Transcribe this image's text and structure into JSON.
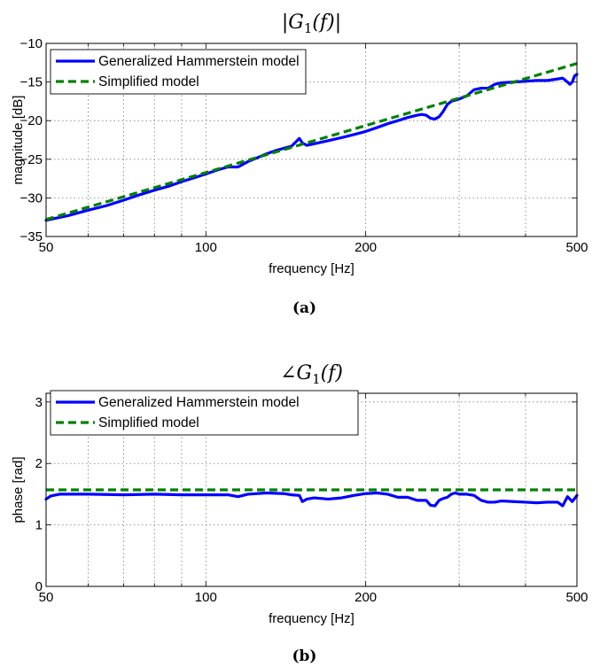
{
  "chart_data": [
    {
      "type": "line",
      "caption": "(a)",
      "title": "|G_1(f)|",
      "xlabel": "frequency [Hz]",
      "ylabel": "magnitude [dB]",
      "xscale": "log",
      "xlim": [
        50,
        500
      ],
      "ylim": [
        -35,
        -10
      ],
      "xticks": [
        50,
        100,
        200,
        500
      ],
      "yticks": [
        -35,
        -30,
        -25,
        -20,
        -15,
        -10
      ],
      "xtick_labels": [
        "50",
        "100",
        "200",
        "500"
      ],
      "ytick_labels": [
        "−35",
        "−30",
        "−25",
        "−20",
        "−15",
        "−10"
      ],
      "grid": true,
      "legend_position": "top-left",
      "series": [
        {
          "name": "Generalized Hammerstein model",
          "color": "#0000ff",
          "style": "solid",
          "x": [
            50,
            55,
            60,
            65,
            70,
            75,
            80,
            85,
            90,
            95,
            100,
            105,
            110,
            115,
            120,
            125,
            130,
            135,
            140,
            145,
            148,
            150,
            152,
            155,
            160,
            170,
            180,
            190,
            200,
            210,
            220,
            230,
            240,
            250,
            255,
            260,
            265,
            270,
            275,
            280,
            285,
            290,
            300,
            310,
            320,
            330,
            340,
            350,
            360,
            380,
            400,
            420,
            440,
            460,
            470,
            480,
            485,
            490,
            495,
            500
          ],
          "y": [
            -32.9,
            -32.3,
            -31.6,
            -31.0,
            -30.3,
            -29.6,
            -29.0,
            -28.5,
            -27.9,
            -27.4,
            -26.9,
            -26.4,
            -26.0,
            -26.0,
            -25.3,
            -24.8,
            -24.3,
            -23.9,
            -23.6,
            -23.3,
            -22.7,
            -22.3,
            -22.9,
            -23.2,
            -23.0,
            -22.6,
            -22.2,
            -21.8,
            -21.4,
            -20.9,
            -20.4,
            -20.0,
            -19.6,
            -19.3,
            -19.2,
            -19.3,
            -19.7,
            -19.8,
            -19.5,
            -18.8,
            -17.9,
            -17.5,
            -17.2,
            -16.8,
            -16.0,
            -15.8,
            -15.8,
            -15.3,
            -15.1,
            -15.0,
            -14.9,
            -14.8,
            -14.8,
            -14.6,
            -14.5,
            -15.0,
            -15.3,
            -15.0,
            -14.2,
            -14.0
          ]
        },
        {
          "name": "Simplified model",
          "color": "#008000",
          "style": "dashed",
          "x": [
            50,
            500
          ],
          "y": [
            -32.8,
            -12.6
          ]
        }
      ]
    },
    {
      "type": "line",
      "caption": "(b)",
      "title": "∠G_1(f)",
      "xlabel": "frequency [Hz]",
      "ylabel": "phase [rad]",
      "xscale": "log",
      "xlim": [
        50,
        500
      ],
      "ylim": [
        0,
        3.14159
      ],
      "xticks": [
        50,
        100,
        200,
        500
      ],
      "yticks": [
        0,
        1,
        2,
        3
      ],
      "xtick_labels": [
        "50",
        "100",
        "200",
        "500"
      ],
      "ytick_labels": [
        "0",
        "1",
        "2",
        "3"
      ],
      "grid": true,
      "legend_position": "top-left",
      "series": [
        {
          "name": "Generalized Hammerstein model",
          "color": "#0000ff",
          "style": "solid",
          "x": [
            50,
            51,
            53,
            60,
            70,
            80,
            90,
            100,
            105,
            110,
            115,
            120,
            130,
            140,
            145,
            150,
            152,
            155,
            160,
            170,
            180,
            190,
            200,
            210,
            220,
            230,
            240,
            250,
            260,
            265,
            270,
            275,
            280,
            285,
            290,
            295,
            300,
            310,
            320,
            330,
            340,
            350,
            360,
            380,
            400,
            420,
            440,
            450,
            460,
            470,
            480,
            490,
            500
          ],
          "y": [
            1.42,
            1.47,
            1.5,
            1.5,
            1.49,
            1.5,
            1.49,
            1.49,
            1.49,
            1.49,
            1.46,
            1.5,
            1.52,
            1.51,
            1.49,
            1.48,
            1.38,
            1.42,
            1.44,
            1.42,
            1.44,
            1.48,
            1.51,
            1.52,
            1.5,
            1.45,
            1.45,
            1.4,
            1.4,
            1.32,
            1.31,
            1.4,
            1.43,
            1.45,
            1.5,
            1.52,
            1.5,
            1.5,
            1.48,
            1.4,
            1.37,
            1.37,
            1.39,
            1.38,
            1.37,
            1.36,
            1.37,
            1.37,
            1.37,
            1.31,
            1.46,
            1.38,
            1.48
          ]
        },
        {
          "name": "Simplified model",
          "color": "#008000",
          "style": "dashed",
          "x": [
            50,
            500
          ],
          "y": [
            1.5708,
            1.5708
          ]
        }
      ]
    }
  ]
}
